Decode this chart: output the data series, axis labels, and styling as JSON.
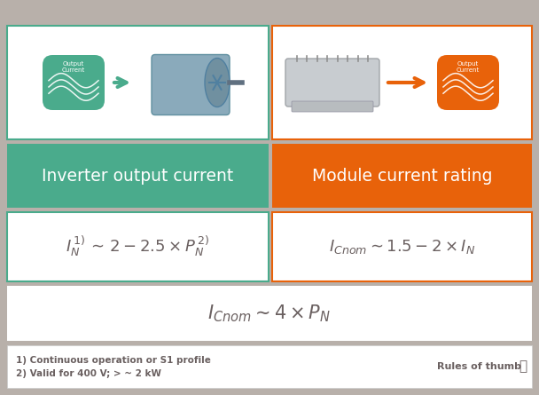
{
  "bg_color": "#b8b0aa",
  "white": "#ffffff",
  "teal": "#4aab8c",
  "orange": "#e8620a",
  "text_dark": "#6a6060",
  "text_white": "#ffffff",
  "left_label": "Inverter output current",
  "right_label": "Module current rating",
  "footnote1": "1) Continuous operation or S1 profile",
  "footnote2": "2) Valid for 400 V; > ~ 2 kW",
  "rules_thumb": "Rules of thumb",
  "output_current_label": "Output\nCurrent"
}
